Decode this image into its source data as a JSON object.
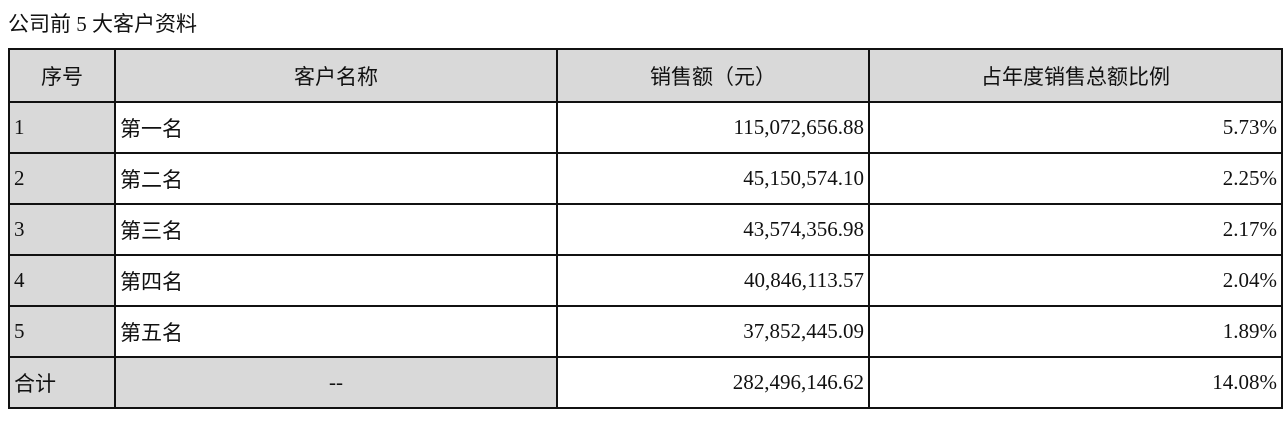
{
  "title": "公司前 5 大客户资料",
  "headers": [
    "序号",
    "客户名称",
    "销售额（元）",
    "占年度销售总额比例"
  ],
  "rows": [
    [
      "1",
      "第一名",
      "115,072,656.88",
      "5.73%"
    ],
    [
      "2",
      "第二名",
      "45,150,574.10",
      "2.25%"
    ],
    [
      "3",
      "第三名",
      "43,574,356.98",
      "2.17%"
    ],
    [
      "4",
      "第四名",
      "40,846,113.57",
      "2.04%"
    ],
    [
      "5",
      "第五名",
      "37,852,445.09",
      "1.89%"
    ]
  ],
  "total": [
    "合计",
    "--",
    "282,496,146.62",
    "14.08%"
  ]
}
